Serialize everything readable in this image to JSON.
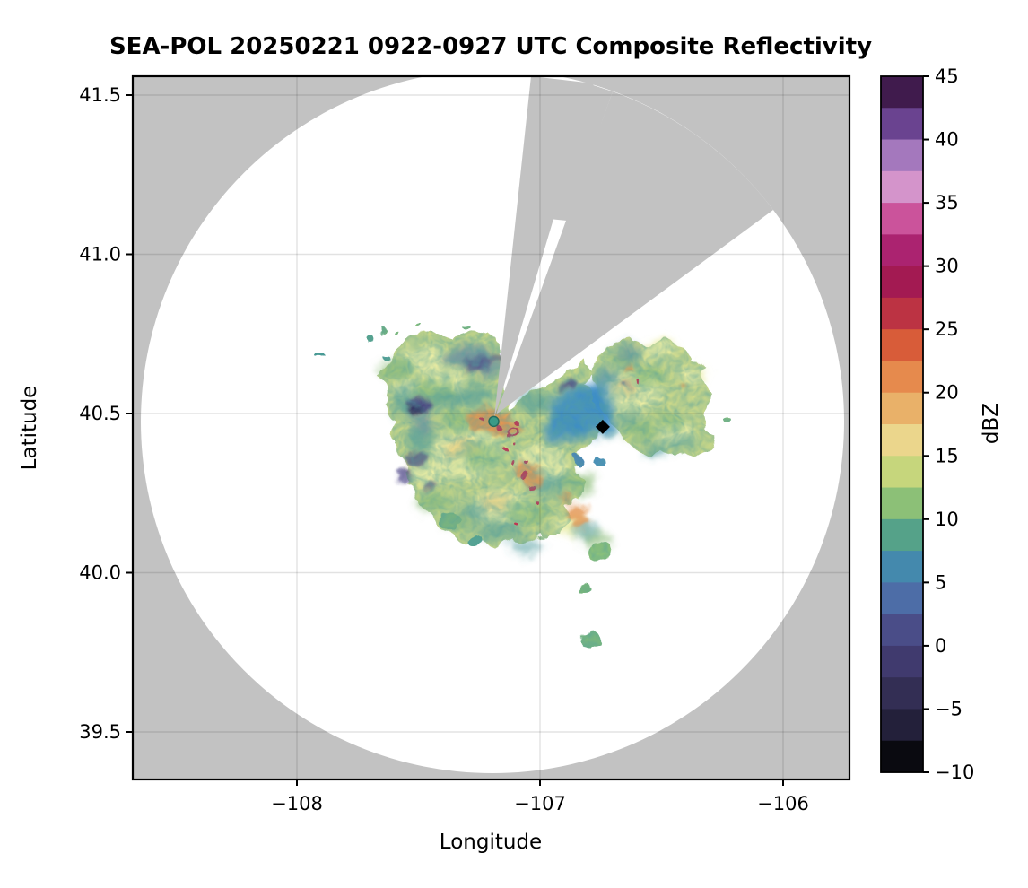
{
  "figure": {
    "title": "SEA-POL 20250221 0922-0927 UTC Composite Reflectivity",
    "xlabel": "Longitude",
    "ylabel": "Latitude",
    "background_color": "#ffffff",
    "nodata_gray": "#c2c2c2"
  },
  "axes": {
    "x": {
      "ticks": [
        {
          "v": -108,
          "label": "−108"
        },
        {
          "v": -107,
          "label": "−107"
        },
        {
          "v": -106,
          "label": "−106"
        }
      ]
    },
    "y": {
      "ticks": [
        {
          "v": 41.5,
          "label": "41.5"
        },
        {
          "v": 41.0,
          "label": "41.0"
        },
        {
          "v": 40.5,
          "label": "40.5"
        },
        {
          "v": 40.0,
          "label": "40.0"
        },
        {
          "v": 39.5,
          "label": "39.5"
        }
      ]
    }
  },
  "colorbar": {
    "label": "dBZ",
    "vmin": -10,
    "vmax": 45,
    "tick_values": [
      45,
      40,
      35,
      30,
      25,
      20,
      15,
      10,
      5,
      0,
      -5,
      -10
    ],
    "tick_labels": [
      "45",
      "40",
      "35",
      "30",
      "25",
      "20",
      "15",
      "10",
      "5",
      "0",
      "−5",
      "−10"
    ],
    "band_step_dbz": 2.5,
    "band_colors_top_to_bottom": [
      "#401b4d",
      "#6a4390",
      "#a478bd",
      "#d494cb",
      "#cb539b",
      "#ab2370",
      "#a31a52",
      "#bc3343",
      "#d85c39",
      "#e68a4d",
      "#e9b169",
      "#ebd68c",
      "#c6d67c",
      "#8cc077",
      "#55a289",
      "#4489ad",
      "#4d6da7",
      "#4a4d88",
      "#403a6e",
      "#332e54",
      "#23203a",
      "#0a0a10"
    ]
  },
  "markers": {
    "radar_site": {
      "name": "SEA-POL radar site",
      "lon": -107.19,
      "lat": 40.475,
      "color": "#3a9a87"
    },
    "poi_diamond": {
      "name": "black diamond marker",
      "lon": -106.742,
      "lat": 40.458,
      "color": "#000000"
    }
  },
  "chart_data": {
    "type": "heatmap",
    "title": "SEA-POL 20250221 0922-0927 UTC Composite Reflectivity",
    "xlabel": "Longitude",
    "ylabel": "Latitude",
    "xlim": [
      -108.68,
      -105.73
    ],
    "ylim": [
      39.34,
      41.56
    ],
    "xticks": [
      -108,
      -107,
      -106
    ],
    "yticks": [
      41.5,
      41.0,
      40.5,
      40.0,
      39.5
    ],
    "grid": true,
    "colorbar": {
      "label": "dBZ",
      "range": [
        -10,
        45
      ],
      "tick_step": 5
    },
    "radar_site_lonlat": [
      -107.19,
      40.475
    ],
    "range_ring_radius_deg_lat": 1.1,
    "blocked_sector_azimuths_deg_from_north": [
      [
        6,
        16
      ],
      [
        21,
        53
      ]
    ],
    "echo_extent_lon": [
      -107.7,
      -106.25
    ],
    "echo_extent_lat": [
      40.02,
      40.78
    ],
    "typical_dbz": [
      5,
      20
    ],
    "max_dbz_approx": 32,
    "features": [
      "broad stratiform echo (10-20 dBZ, pale yellow-green) surrounding radar",
      "embedded 25-30 dBZ orange/red cells just east and southeast of radar near (-107.15, 40.45) and (-107.05, 40.30)",
      "5 dBZ blue region around diamond marker near (-106.85, 40.45)",
      "near-0 dBZ indigo pocket near (-107.5, 40.52)",
      "scattered small echoes south and southeast near 40.0-40.1 latitude",
      "two gray blocked/no-data wedges north and northeast of radar"
    ]
  }
}
